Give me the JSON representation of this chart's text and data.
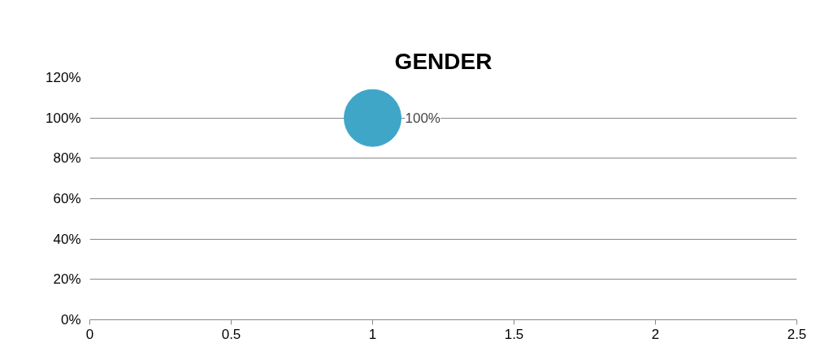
{
  "chart_data": {
    "type": "bubble",
    "title": "GENDER",
    "x": [
      1
    ],
    "values": [
      100
    ],
    "sizes": [
      1
    ],
    "color": "#3fa6c8",
    "value_labels": [
      "100%"
    ],
    "xlim": [
      0,
      2.5
    ],
    "xticks": [
      0,
      {
        "value": 0.5,
        "label": "0.5"
      },
      1,
      {
        "value": 1.5,
        "label": "1.5"
      },
      2,
      {
        "value": 2.5,
        "label": "2.5"
      }
    ],
    "ylim": [
      0,
      120
    ],
    "yticks": [
      {
        "value": 0,
        "label": "0%"
      },
      {
        "value": 20,
        "label": "20%"
      },
      {
        "value": 40,
        "label": "40%"
      },
      {
        "value": 60,
        "label": "60%"
      },
      {
        "value": 80,
        "label": "80%"
      },
      {
        "value": 100,
        "label": "100%"
      },
      {
        "value": 120,
        "label": "120%"
      }
    ],
    "grid": "y"
  }
}
